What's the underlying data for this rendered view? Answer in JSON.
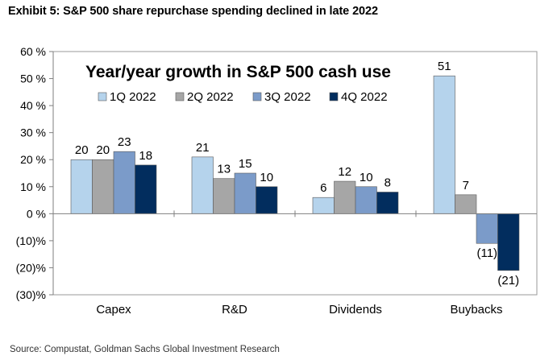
{
  "header": {
    "exhibit_title": "Exhibit 5: S&P 500 share repurchase spending declined in late 2022"
  },
  "footer": {
    "source": "Source: Compustat, Goldman Sachs Global Investment Research"
  },
  "chart_data": {
    "type": "bar",
    "title": "Year/year growth in S&P 500 cash use",
    "xlabel": "",
    "ylabel": "",
    "categories": [
      "Capex",
      "R&D",
      "Dividends",
      "Buybacks"
    ],
    "series": [
      {
        "name": "1Q 2022",
        "color": "#b5d3ec",
        "values": [
          20,
          21,
          6,
          51
        ],
        "labels": [
          "20",
          "21",
          "6",
          "51"
        ]
      },
      {
        "name": "2Q 2022",
        "color": "#a6a6a6",
        "values": [
          20,
          13,
          12,
          7
        ],
        "labels": [
          "20",
          "13",
          "12",
          "7"
        ]
      },
      {
        "name": "3Q 2022",
        "color": "#7b9bc9",
        "values": [
          23,
          15,
          10,
          -11
        ],
        "labels": [
          "23",
          "15",
          "10",
          "(11)"
        ]
      },
      {
        "name": "4Q 2022",
        "color": "#022d5e",
        "values": [
          18,
          10,
          8,
          -21
        ],
        "labels": [
          "18",
          "10",
          "8",
          "(21)"
        ]
      }
    ],
    "ylim": [
      -30,
      60
    ],
    "yticks": [
      60,
      50,
      40,
      30,
      20,
      10,
      0,
      -10,
      -20,
      -30
    ],
    "ytick_labels": [
      "60 %",
      "50 %",
      "40 %",
      "30 %",
      "20 %",
      "10 %",
      "0 %",
      "(10)%",
      "(20)%",
      "(30)%"
    ],
    "grid": false,
    "legend_position": "top-left inside"
  }
}
